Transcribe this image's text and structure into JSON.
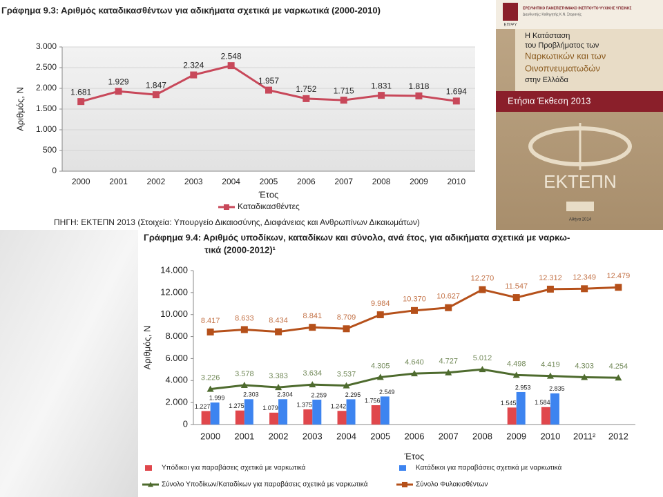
{
  "chart_data": [
    {
      "type": "line",
      "title": "Γράφημα 9.3: Αριθμός καταδικασθέντων για αδικήματα σχετικά με ναρκωτικά  (2000-2010)",
      "ylabel": "Αριθμός, N",
      "xlabel": "Έτος",
      "source": "ΠΗΓΗ: ΕΚΤΕΠΝ 2013 (Στοιχεία: Υπουργείο Δικαιοσύνης, Διαφάνειας και Ανθρωπίνων Δικαιωμάτων)",
      "categories": [
        "2000",
        "2001",
        "2002",
        "2003",
        "2004",
        "2005",
        "2006",
        "2007",
        "2008",
        "2009",
        "2010"
      ],
      "series": [
        {
          "name": "Καταδικασθέντες",
          "color": "#c8485a",
          "marker": "square",
          "type": "line",
          "values": [
            1681,
            1929,
            1847,
            2324,
            2548,
            1957,
            1752,
            1715,
            1831,
            1818,
            1694
          ],
          "value_labels": [
            "1.681",
            "1.929",
            "1.847",
            "2.324",
            "2.548",
            "1.957",
            "1.752",
            "1.715",
            "1.831",
            "1.818",
            "1.694"
          ]
        }
      ],
      "ylim": [
        0,
        3000
      ],
      "yticks": [
        0,
        {
          "value": 500,
          "label": "500"
        },
        {
          "value": 1000,
          "label": "1.000"
        },
        {
          "value": 1500,
          "label": "1.500"
        },
        {
          "value": 2000,
          "label": "2.000"
        },
        {
          "value": 2500,
          "label": "2.500"
        },
        {
          "value": 3000,
          "label": "3.000"
        }
      ],
      "grid": true,
      "legend": "bottom"
    },
    {
      "type": "combo",
      "title": [
        "Γράφημα 9.4: Αριθμός υποδίκων, καταδίκων και σύνολο, ανά έτος, για αδικήματα σχετικά με ναρκω-",
        "τικά (2000-2012)¹"
      ],
      "ylabel": "Αριθμός, N",
      "xlabel": "Έτος",
      "categories": [
        "2000",
        "2001",
        "2002",
        "2003",
        "2004",
        "2005",
        "2006",
        "2007",
        "2008",
        "2009",
        "2010",
        "2011²",
        "2012"
      ],
      "series": [
        {
          "name": "Υπόδικοι για παραβάσεις σχετικά με ναρκωτικά",
          "color": "#e0474c",
          "type": "bar",
          "values": [
            1227,
            1275,
            1079,
            1375,
            1242,
            1756,
            null,
            null,
            null,
            1545,
            1584,
            null,
            null
          ],
          "value_labels": [
            "1.227",
            "1.275",
            "1.079",
            "1.375",
            "1.242",
            "1.756",
            null,
            null,
            null,
            "1.545",
            "1.584",
            null,
            null
          ]
        },
        {
          "name": "Κατάδικοι για παραβάσεις σχετικά με ναρκωτικά",
          "color": "#3d84f0",
          "type": "bar",
          "values": [
            1999,
            2303,
            2304,
            2259,
            2295,
            2549,
            null,
            null,
            null,
            2953,
            2835,
            null,
            null
          ],
          "value_labels": [
            "1.999",
            "2.303",
            "2.304",
            "2.259",
            "2.295",
            "2.549",
            null,
            null,
            null,
            "2.953",
            "2.835",
            null,
            null
          ]
        },
        {
          "name": "Σύνολο Υποδίκων/Καταδίκων για παραβάσεις σχετικά με ναρκωτικά",
          "color": "#4e6b2e",
          "type": "line",
          "marker": "triangle",
          "values": [
            3226,
            3578,
            3383,
            3634,
            3537,
            4305,
            4640,
            4727,
            5012,
            4498,
            4419,
            4303,
            4254
          ],
          "value_labels": [
            "3.226",
            "3.578",
            "3.383",
            "3.634",
            "3.537",
            "4.305",
            "4.640",
            "4.727",
            "5.012",
            "4.498",
            "4.419",
            "4.303",
            "4.254"
          ]
        },
        {
          "name": "Σύνολο Φυλακισθέντων",
          "color": "#b5501a",
          "type": "line",
          "marker": "square",
          "values": [
            8417,
            8633,
            8434,
            8841,
            8709,
            9984,
            10370,
            10627,
            12270,
            11547,
            12312,
            12349,
            12479
          ],
          "value_labels": [
            "8.417",
            "8.633",
            "8.434",
            "8.841",
            "8.709",
            "9.984",
            "10.370",
            "10.627",
            "12.270",
            "11.547",
            "12.312",
            "12.349",
            "12.479"
          ]
        }
      ],
      "ylim": [
        0,
        14000
      ],
      "yticks": [
        0,
        {
          "value": 2000,
          "label": "2.000"
        },
        {
          "value": 4000,
          "label": "4.000"
        },
        {
          "value": 6000,
          "label": "6.000"
        },
        {
          "value": 8000,
          "label": "8.000"
        },
        {
          "value": 10000,
          "label": "10.000"
        },
        {
          "value": 12000,
          "label": "12.000"
        },
        {
          "value": 14000,
          "label": "14.000"
        }
      ],
      "grid": false,
      "legend": "bottom"
    }
  ],
  "cover": {
    "institute": "ΕΡΕΥΝΗΤΙΚΟ ΠΑΝΕΠΙΣΤΗΜΙΑΚΟ ΙΝΣΤΙΤΟΥΤΟ ΨΥΧΙΚΗΣ ΥΓΙΕΙΝΗΣ",
    "director": "Διευθυντής: Καθηγητής Κ.Ν. Στεφανής",
    "logo": "ΕΠΙΨΥ",
    "lines": [
      "Η Κατάσταση",
      "του Προβλήματος των",
      "Ναρκωτικών και των",
      "Οινοπνευματωδών",
      "στην Ελλάδα"
    ],
    "report": "Ετήσια Έκθεση 2013",
    "brand": "ΕΚΤΕΠΝ",
    "place": "Αθήνα 2014"
  }
}
